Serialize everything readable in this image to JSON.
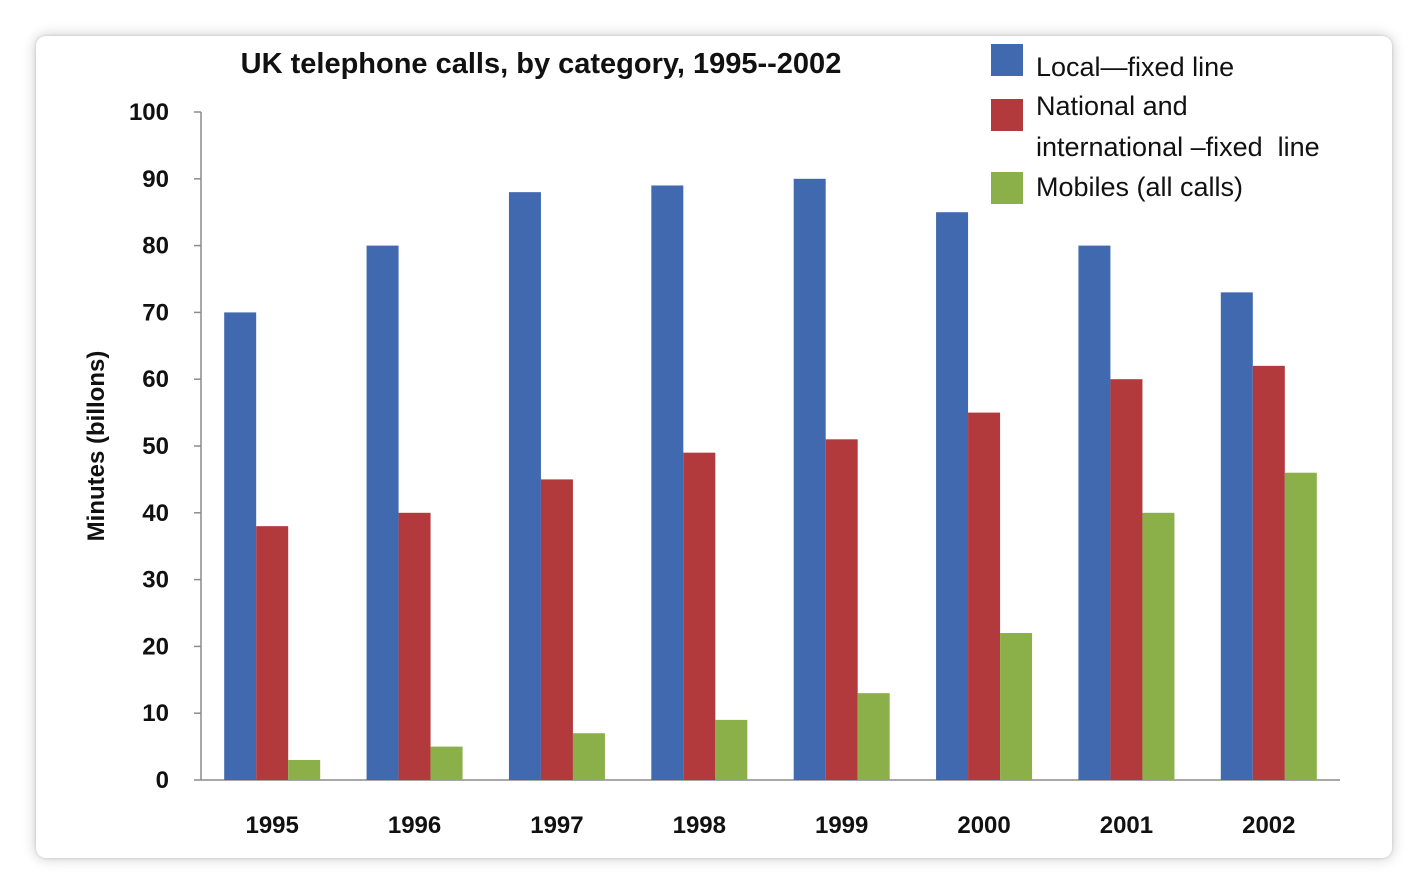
{
  "chart_data": {
    "type": "bar",
    "title": "UK telephone calls, by category, 1995--2002",
    "xlabel": "",
    "ylabel": "Minutes (billons)",
    "ylim": [
      0,
      100
    ],
    "yticks": [
      "0",
      "10",
      "20",
      "30",
      "40",
      "50",
      "60",
      "70",
      "80",
      "90",
      "100"
    ],
    "categories": [
      "1995",
      "1996",
      "1997",
      "1998",
      "1999",
      "2000",
      "2001",
      "2002"
    ],
    "series": [
      {
        "name": "Local—fixed line",
        "color": "#4169B0",
        "values": [
          70,
          80,
          88,
          89,
          90,
          85,
          80,
          73
        ]
      },
      {
        "name": "National and international –fixed  line",
        "color": "#B23A3D",
        "values": [
          38,
          40,
          45,
          49,
          51,
          55,
          60,
          62
        ]
      },
      {
        "name": "Mobiles (all calls)",
        "color": "#8BB04A",
        "values": [
          3,
          5,
          7,
          9,
          13,
          22,
          40,
          46
        ]
      }
    ],
    "legend": {
      "position": "top-right",
      "lines": [
        [
          "Local—fixed line"
        ],
        [
          "National and",
          "international –fixed  line"
        ],
        [
          "Mobiles (all calls)"
        ]
      ]
    },
    "grid": false
  }
}
